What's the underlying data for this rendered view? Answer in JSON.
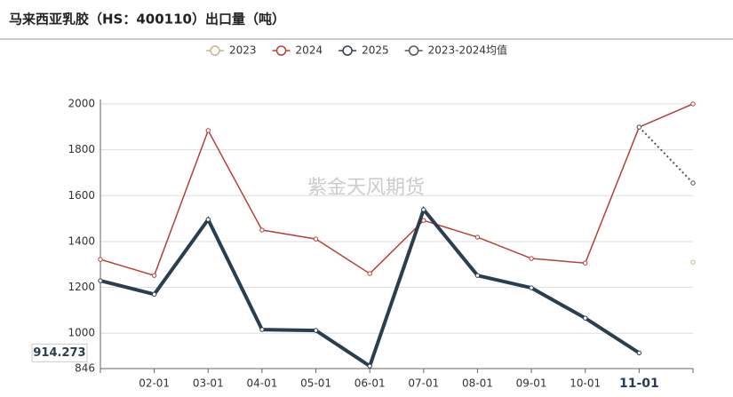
{
  "chart_data": {
    "type": "line",
    "title": "马来西亚乳胶（HS：400110）出口量（吨）",
    "watermark": "紫金天风期货",
    "categories": [
      null,
      "02-01",
      "03-01",
      "04-01",
      "05-01",
      "06-01",
      "07-01",
      "08-01",
      "09-01",
      "10-01",
      "11-01",
      null
    ],
    "series": [
      {
        "name": "2023",
        "color": "#c8b48e",
        "values": [
          null,
          null,
          null,
          null,
          null,
          null,
          null,
          null,
          null,
          null,
          null,
          1310
        ]
      },
      {
        "name": "2024",
        "color": "#b5403a",
        "values": [
          1322,
          1252,
          1884,
          1450,
          1411,
          1260,
          1492,
          1419,
          1326,
          1306,
          1899,
          2000
        ]
      },
      {
        "name": "2025",
        "color": "#2b3e50",
        "values": [
          1229,
          1170,
          1496,
          1016,
          1012,
          857,
          1539,
          1252,
          1198,
          1066,
          914.273,
          null
        ]
      },
      {
        "name": "2023-2024均值",
        "color": "#555555",
        "dashed": true,
        "values": [
          null,
          null,
          null,
          null,
          null,
          null,
          null,
          null,
          null,
          null,
          1899,
          1655
        ]
      }
    ],
    "ylim": [
      846,
      2000
    ],
    "yticks": [
      846,
      1000,
      1200,
      1400,
      1600,
      1800,
      2000
    ],
    "grid": true,
    "highlight_index": 10,
    "highlight_series": 2
  }
}
